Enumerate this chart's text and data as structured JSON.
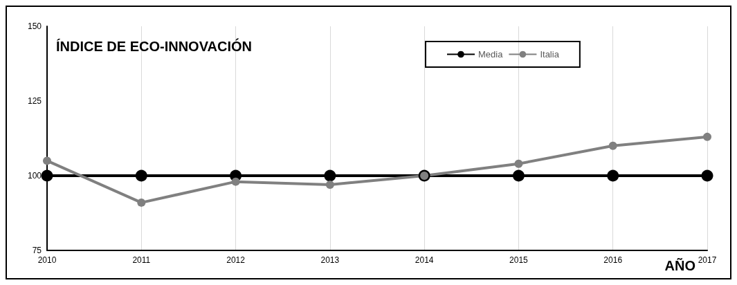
{
  "chart_data": {
    "type": "line",
    "title": "ÍNDICE DE ECO-INNOVACIÓN",
    "xlabel": "AÑO",
    "categories": [
      "2010",
      "2011",
      "2012",
      "2013",
      "2014",
      "2015",
      "2016",
      "2017"
    ],
    "series": [
      {
        "name": "Media",
        "color": "#000000",
        "values": [
          100,
          100,
          100,
          100,
          100,
          100,
          100,
          100
        ]
      },
      {
        "name": "Italia",
        "color": "#808080",
        "values": [
          105,
          91,
          98,
          97,
          100,
          104,
          110,
          113
        ]
      }
    ],
    "ylim": [
      75,
      150
    ],
    "yticks": [
      75,
      100,
      125,
      150
    ],
    "grid": "x",
    "legend": "top",
    "marker": "circle",
    "line_style": "solid"
  }
}
